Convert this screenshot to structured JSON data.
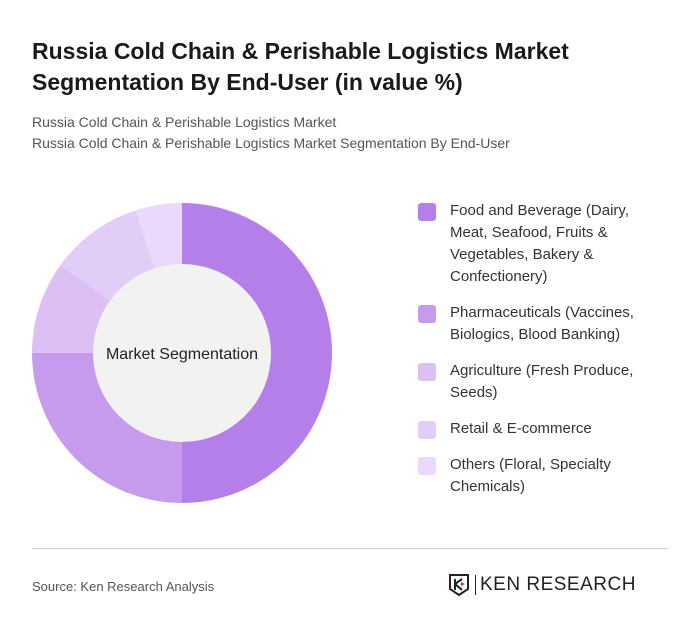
{
  "title": "Russia Cold Chain & Perishable Logistics Market Segmentation By End-User (in value %)",
  "subtitle_1": "Russia Cold Chain & Perishable Logistics Market",
  "subtitle_2": "Russia Cold Chain & Perishable Logistics Market Segmentation By End-User",
  "source": "Source: Ken Research Analysis",
  "logo_text": "KEN RESEARCH",
  "chart_data": {
    "type": "pie",
    "variant": "donut",
    "center_label": "Market Segmentation",
    "legend_position": "right",
    "categories": [
      "Food and Beverage (Dairy, Meat, Seafood, Fruits & Vegetables, Bakery & Confectionery)",
      "Pharmaceuticals (Vaccines, Biologics, Blood Banking)",
      "Agriculture (Fresh Produce, Seeds)",
      "Retail & E-commerce",
      "Others (Floral, Specialty Chemicals)"
    ],
    "values": [
      50,
      25,
      10,
      10,
      5
    ],
    "colors": [
      "#b57fe9",
      "#c69bed",
      "#dcbff5",
      "#e2cdf7",
      "#ead9fa"
    ]
  }
}
